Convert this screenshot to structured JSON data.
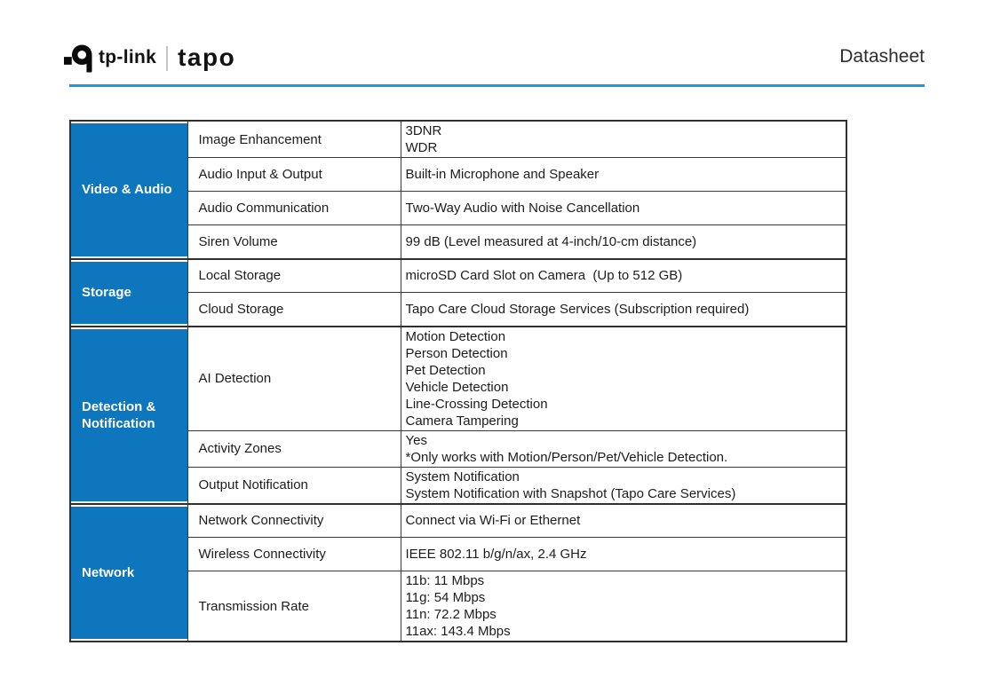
{
  "header": {
    "brand": "tp-link",
    "sub_brand": "tapo",
    "doc_label": "Datasheet"
  },
  "colors": {
    "accent_line": "#129fdf",
    "category_bg": "#0e76bd",
    "logo_black": "#0b0b0b"
  },
  "table": {
    "sections": [
      {
        "category": "Video & Audio",
        "rows": [
          {
            "label": "Image Enhancement",
            "value": "3DNR\nWDR"
          },
          {
            "label": "Audio Input & Output",
            "value": "Built-in Microphone and Speaker"
          },
          {
            "label": "Audio Communication",
            "value": "Two-Way Audio with Noise Cancellation"
          },
          {
            "label": "Siren Volume",
            "value": "99 dB (Level measured at 4-inch/10-cm distance)"
          }
        ]
      },
      {
        "category": "Storage",
        "rows": [
          {
            "label": "Local Storage",
            "value": "microSD Card Slot on Camera  (Up to 512 GB)"
          },
          {
            "label": "Cloud Storage",
            "value": "Tapo Care Cloud Storage Services (Subscription required)"
          }
        ]
      },
      {
        "category": "Detection &\nNotification",
        "rows": [
          {
            "label": "AI Detection",
            "value": "Motion Detection\nPerson Detection\nPet Detection\nVehicle Detection\nLine-Crossing Detection\nCamera Tampering"
          },
          {
            "label": "Activity Zones",
            "value": "Yes\n*Only works with Motion/Person/Pet/Vehicle Detection."
          },
          {
            "label": "Output Notification",
            "value": "System Notification\nSystem Notification with Snapshot (Tapo Care Services)"
          }
        ]
      },
      {
        "category": "Network",
        "rows": [
          {
            "label": "Network Connectivity",
            "value": "Connect via Wi-Fi or Ethernet"
          },
          {
            "label": "Wireless Connectivity",
            "value": "IEEE 802.11 b/g/n/ax, 2.4 GHz"
          },
          {
            "label": "Transmission Rate",
            "value": "11b: 11 Mbps\n11g: 54 Mbps\n11n: 72.2 Mbps\n11ax: 143.4 Mbps"
          }
        ]
      }
    ]
  }
}
